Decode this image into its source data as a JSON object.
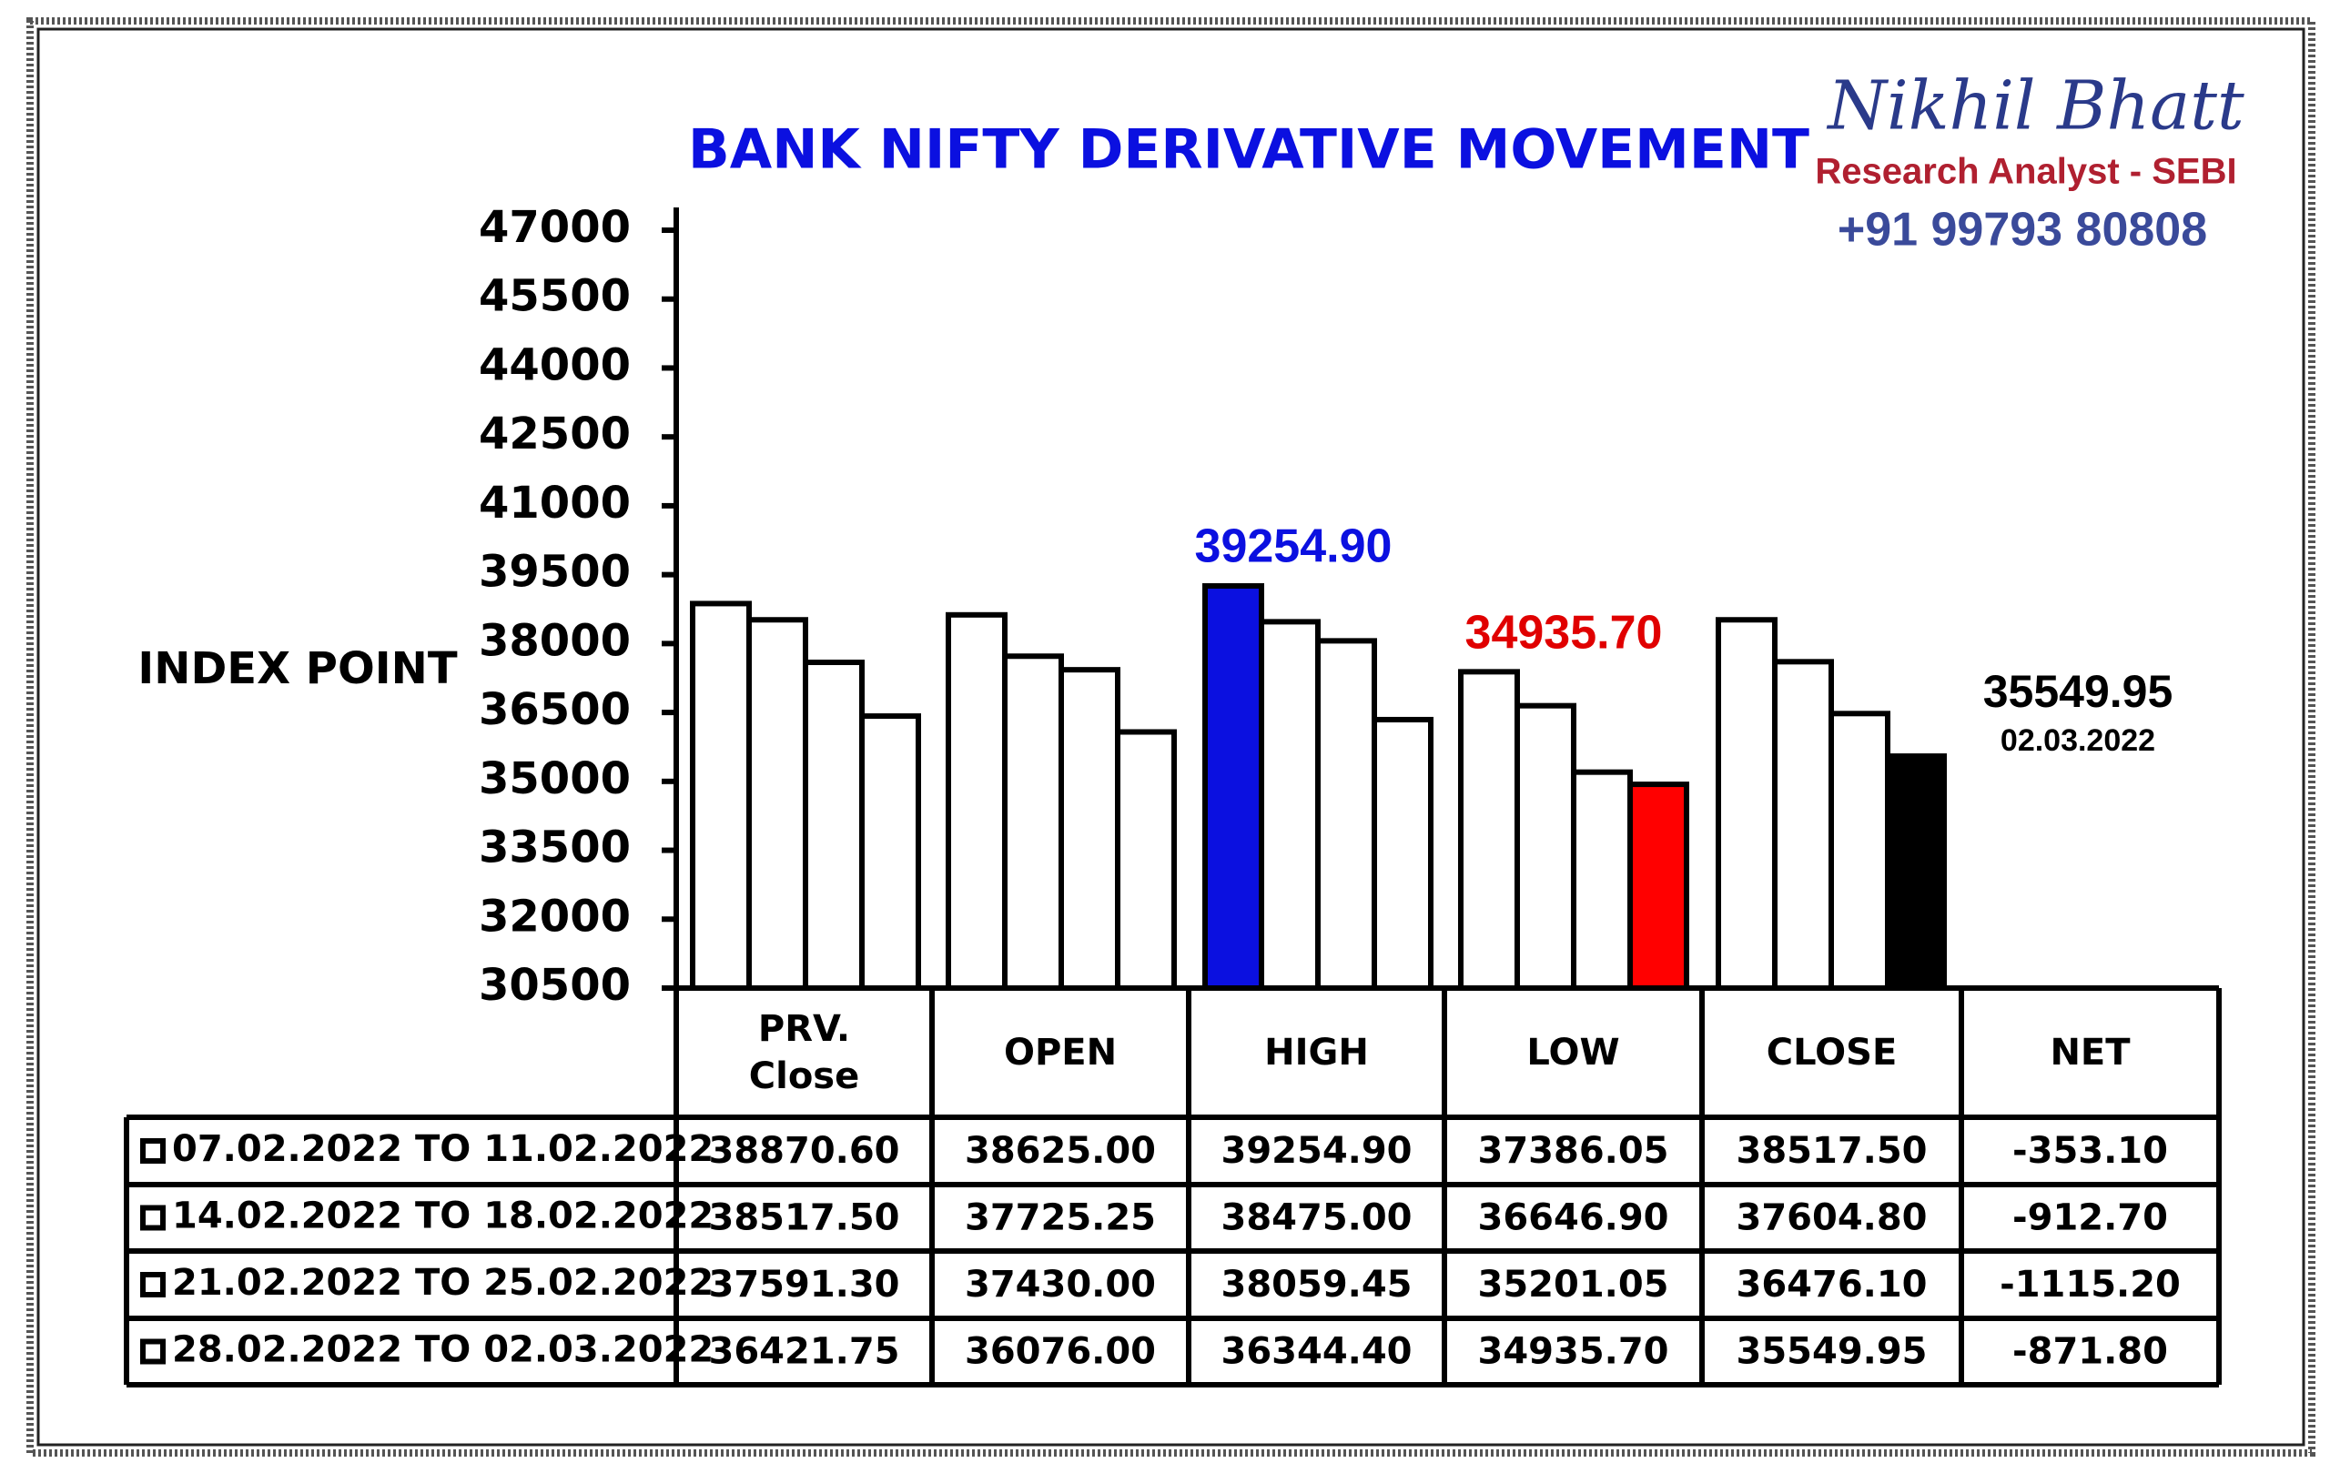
{
  "chart_data": {
    "type": "bar",
    "title": "BANK NIFTY DERIVATIVE MOVEMENT",
    "y_label": "INDEX POINT",
    "brand": {
      "name": "Nikhil Bhatt",
      "role": "Research Analyst - SEBI",
      "phone": "+91 99793 80808"
    },
    "categories": [
      "PRV. Close",
      "OPEN",
      "HIGH",
      "LOW",
      "CLOSE"
    ],
    "net_column": "NET",
    "ylim": [
      30500,
      47000
    ],
    "yticks": [
      30500,
      32000,
      33500,
      35000,
      36500,
      38000,
      39500,
      41000,
      42500,
      44000,
      45500,
      47000
    ],
    "series": [
      {
        "name": "07.02.2022 TO 11.02.2022",
        "values": [
          38870.6,
          38625,
          39254.9,
          37386.05,
          38517.5
        ],
        "value_labels": [
          "38870.60",
          "38625.00",
          "39254.90",
          "37386.05",
          "38517.50"
        ],
        "colors": [
          "#ffffff",
          "#ffffff",
          "#0b10e0",
          "#ffffff",
          "#ffffff"
        ],
        "net": -353.1,
        "net_label": "-353.10"
      },
      {
        "name": "14.02.2022 TO 18.02.2022",
        "values": [
          38517.5,
          37725.25,
          38475,
          36646.9,
          37604.8
        ],
        "value_labels": [
          "38517.50",
          "37725.25",
          "38475.00",
          "36646.90",
          "37604.80"
        ],
        "colors": [
          "#ffffff",
          "#ffffff",
          "#ffffff",
          "#ffffff",
          "#ffffff"
        ],
        "net": -912.7,
        "net_label": "-912.70"
      },
      {
        "name": "21.02.2022 TO 25.02.2022",
        "values": [
          37591.3,
          37430,
          38059.45,
          35201.05,
          36476.1
        ],
        "value_labels": [
          "37591.30",
          "37430.00",
          "38059.45",
          "35201.05",
          "36476.10"
        ],
        "colors": [
          "#ffffff",
          "#ffffff",
          "#ffffff",
          "#ffffff",
          "#ffffff"
        ],
        "net": -1115.2,
        "net_label": "-1115.20"
      },
      {
        "name": "28.02.2022 TO 02.03.2022",
        "values": [
          36421.75,
          36076,
          36344.4,
          34935.7,
          35549.95
        ],
        "value_labels": [
          "36421.75",
          "36076.00",
          "36344.40",
          "34935.70",
          "35549.95"
        ],
        "colors": [
          "#ffffff",
          "#ffffff",
          "#ffffff",
          "#ff0000",
          "#000000"
        ],
        "net": -871.8,
        "net_label": "-871.80"
      }
    ],
    "annotations": [
      {
        "text": "39254.90",
        "color": "#0b10e0"
      },
      {
        "text": "34935.70",
        "color": "#e00000"
      },
      {
        "text": "35549.95",
        "color": "#000000"
      },
      {
        "text": "02.03.2022",
        "color": "#000000"
      }
    ]
  }
}
